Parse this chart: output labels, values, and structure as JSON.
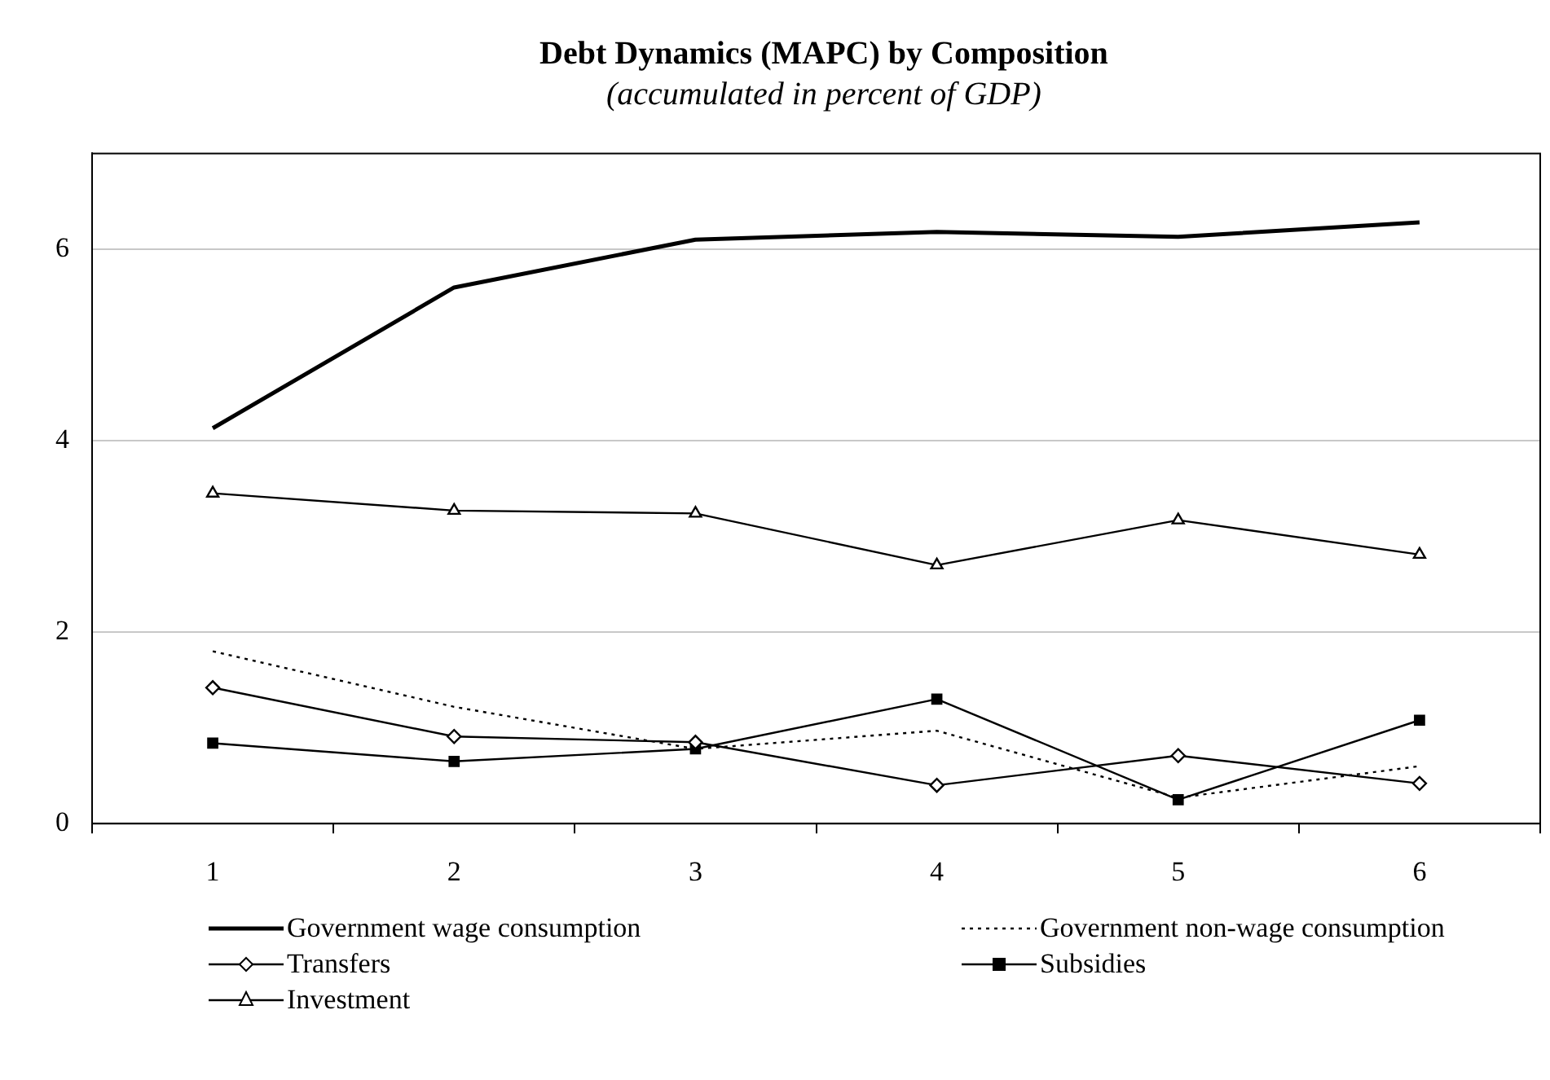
{
  "chart_data": {
    "type": "line",
    "title": "Debt Dynamics (MAPC) by Composition",
    "subtitle": "(accumulated in percent of GDP)",
    "categories": [
      "1",
      "2",
      "3",
      "4",
      "5",
      "6"
    ],
    "series": [
      {
        "name": "Government wage consumption",
        "color": "#000000",
        "line_style": "solid",
        "marker": "none",
        "values": [
          4.13,
          5.6,
          6.1,
          6.18,
          6.13,
          6.28
        ]
      },
      {
        "name": "Government non-wage consumption",
        "color": "#000000",
        "line_style": "dotted",
        "marker": "none",
        "values": [
          1.8,
          1.22,
          0.78,
          0.97,
          0.27,
          0.6
        ]
      },
      {
        "name": "Transfers",
        "color": "#000000",
        "line_style": "solid",
        "marker": "diamond",
        "values": [
          1.42,
          0.91,
          0.85,
          0.4,
          0.71,
          0.42
        ]
      },
      {
        "name": "Subsidies",
        "color": "#000000",
        "line_style": "solid",
        "marker": "square",
        "values": [
          0.84,
          0.65,
          0.78,
          1.3,
          0.25,
          1.08
        ]
      },
      {
        "name": "Investment",
        "color": "#000000",
        "line_style": "solid",
        "marker": "triangle",
        "values": [
          3.45,
          3.27,
          3.24,
          2.7,
          3.17,
          2.81
        ]
      }
    ],
    "ylim": [
      0,
      7
    ],
    "yticks": [
      0,
      2,
      4,
      6
    ],
    "grid": "y",
    "legend": "bottom"
  }
}
